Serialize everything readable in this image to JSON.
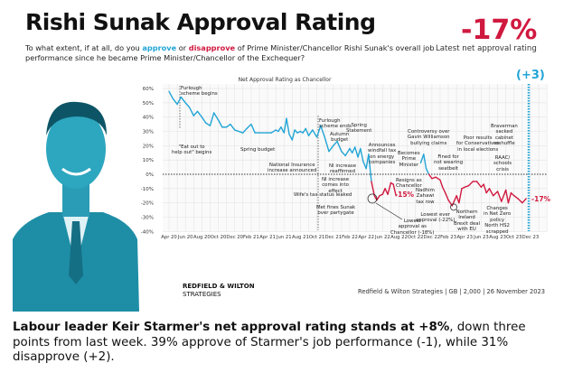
{
  "header": {
    "title": "Rishi Sunak Approval Rating",
    "question_pre": "To what extent, if at all, do you ",
    "approve": "approve",
    "or": " or ",
    "disapprove": "disapprove",
    "question_post": " of Prime Minister/Chancellor Rishi Sunak's overall job performance since he became Prime Minister/Chancellor of the Exchequer?",
    "latest_value": "-17%",
    "latest_label": "Latest net approval rating",
    "change": "(+3)"
  },
  "colors": {
    "positive": "#22a5d6",
    "negative": "#d0193f",
    "photo": "#1e8ea6"
  },
  "chart_data": {
    "type": "line",
    "title": "Net Approval Rating as Chancellor",
    "xlabel": "",
    "ylabel": "",
    "ylim": [
      -40,
      60
    ],
    "yticks": [
      "60%",
      "50%",
      "40%",
      "30%",
      "20%",
      "10%",
      "0%",
      "-10%",
      "-20%",
      "-30%",
      "-40%"
    ],
    "xticks": [
      "Apr 20",
      "Jun 20",
      "Aug 20",
      "Oct 20",
      "Dec 20",
      "Feb 21",
      "Apr 21",
      "Jun 21",
      "Aug 21",
      "Oct 21",
      "Dec 21",
      "Feb 22",
      "Apr 22",
      "Jun 22",
      "Aug 22",
      "Oct 22",
      "Dec 22",
      "Feb 23",
      "Apr 23",
      "Jun 23",
      "Aug 23",
      "Oct 23",
      "Dec 23"
    ],
    "grid": true,
    "series": [
      {
        "segment": "Chancellor",
        "points": [
          [
            "2020-04",
            58
          ],
          [
            "2020-04-15",
            53
          ],
          [
            "2020-05",
            49
          ],
          [
            "2020-05-15",
            54
          ],
          [
            "2020-06",
            50
          ],
          [
            "2020-06-15",
            47
          ],
          [
            "2020-07",
            41
          ],
          [
            "2020-07-15",
            44
          ],
          [
            "2020-08",
            40
          ],
          [
            "2020-08-15",
            36
          ],
          [
            "2020-09",
            34
          ],
          [
            "2020-09-15",
            43
          ],
          [
            "2020-10",
            38
          ],
          [
            "2020-10-15",
            33
          ],
          [
            "2020-11",
            33
          ],
          [
            "2020-11-15",
            35
          ],
          [
            "2020-12",
            31
          ],
          [
            "2021-01",
            29
          ],
          [
            "2021-01-15",
            32
          ],
          [
            "2021-02",
            35
          ],
          [
            "2021-02-15",
            29
          ],
          [
            "2021-03",
            29
          ],
          [
            "2021-04",
            29
          ],
          [
            "2021-04-15",
            29
          ],
          [
            "2021-05",
            31
          ],
          [
            "2021-05-10",
            30
          ],
          [
            "2021-05-20",
            33
          ],
          [
            "2021-06",
            29
          ],
          [
            "2021-06-10",
            39
          ],
          [
            "2021-06-20",
            28
          ],
          [
            "2021-07",
            24
          ],
          [
            "2021-07-10",
            31
          ],
          [
            "2021-07-20",
            29
          ],
          [
            "2021-08",
            30
          ],
          [
            "2021-08-10",
            29
          ],
          [
            "2021-08-20",
            32
          ],
          [
            "2021-09",
            27
          ],
          [
            "2021-09-15",
            31
          ],
          [
            "2021-10",
            26
          ],
          [
            "2021-10-15",
            34
          ],
          [
            "2021-11",
            25
          ],
          [
            "2021-11-15",
            16
          ],
          [
            "2021-12",
            20
          ],
          [
            "2021-12-15",
            23
          ],
          [
            "2022-01",
            16
          ],
          [
            "2022-01-15",
            13
          ],
          [
            "2022-02",
            18
          ],
          [
            "2022-02-10",
            15
          ],
          [
            "2022-02-20",
            19
          ],
          [
            "2022-03",
            12
          ],
          [
            "2022-03-10",
            18
          ],
          [
            "2022-03-20",
            9
          ],
          [
            "2022-04",
            4
          ],
          [
            "2022-04-10",
            14
          ],
          [
            "2022-04-20",
            -5
          ],
          [
            "2022-05",
            -15
          ],
          [
            "2022-05-10",
            -18
          ],
          [
            "2022-05-20",
            -15
          ],
          [
            "2022-06",
            -14
          ],
          [
            "2022-06-10",
            -10
          ],
          [
            "2022-06-20",
            -14
          ],
          [
            "2022-07",
            -6
          ],
          [
            "2022-07-10",
            -7
          ],
          [
            "2022-07-20",
            -15
          ]
        ]
      },
      {
        "segment": "Prime Minister",
        "points": [
          [
            "2022-10-20",
            8
          ],
          [
            "2022-11",
            14
          ],
          [
            "2022-11-10",
            4
          ],
          [
            "2022-11-20",
            0
          ],
          [
            "2022-12",
            -3
          ],
          [
            "2022-12-15",
            -2
          ],
          [
            "2023-01",
            -4
          ],
          [
            "2023-01-10",
            -9
          ],
          [
            "2023-01-20",
            -13
          ],
          [
            "2023-02",
            -18
          ],
          [
            "2023-02-15",
            -22
          ],
          [
            "2023-03",
            -15
          ],
          [
            "2023-03-10",
            -20
          ],
          [
            "2023-03-20",
            -10
          ],
          [
            "2023-04",
            -9
          ],
          [
            "2023-04-15",
            -8
          ],
          [
            "2023-05",
            -5
          ],
          [
            "2023-05-15",
            -5
          ],
          [
            "2023-06",
            -9
          ],
          [
            "2023-06-10",
            -7
          ],
          [
            "2023-06-20",
            -13
          ],
          [
            "2023-07",
            -10
          ],
          [
            "2023-07-15",
            -15
          ],
          [
            "2023-08",
            -12
          ],
          [
            "2023-08-15",
            -19
          ],
          [
            "2023-09",
            -11
          ],
          [
            "2023-09-10",
            -20
          ],
          [
            "2023-09-20",
            -13
          ],
          [
            "2023-10",
            -15
          ],
          [
            "2023-10-15",
            -17
          ],
          [
            "2023-11",
            -20
          ],
          [
            "2023-11-15",
            -17
          ]
        ]
      }
    ],
    "annotations": [
      "Furlough\nscheme begins",
      "\"Eat out to\nhelp out\" begins",
      "Spring budget",
      "Furlough\nscheme ends",
      "National Insurance\nincrease announced",
      "Autumn\nbudget",
      "NI increase\nreaffirmed",
      "Spring\nStatement",
      "NI increase\ncomes into\neffect",
      "Wife's tax status leaked",
      "Met fines Sunak\nover partygate",
      "Announces\nwindfall tax\non energy\ncompanies",
      "Lowest\napproval as\nChancellor (-18%)",
      "-15%",
      "Resigns as\nChancellor",
      "Becomes\nPrime\nMinister",
      "Controversy over\nGavin Williamson\nbullying claims",
      "Fined for\nnot wearing\nseatbelt",
      "Nadhim\nZahawi\ntax row",
      "Lowest ever\napproval (-22%)",
      "Northern\nIreland\nBrexit deal\nwith EU",
      "Poor results\nfor Conservatives\nin local elections",
      "Changes\nin Net Zero\npolicy\nNorth HS2\nscrapped",
      "RAAC/\nschools\ncrisis",
      "Braverman\nsacked\ncabinet\nreshuffle",
      "-17%"
    ]
  },
  "footer": {
    "logo_line1": "REDFIELD & WILTON",
    "logo_line2": "STRATEGIES",
    "source": "Redfield & Wilton Strategies | GB | 2,000 | 26 November 2023"
  },
  "caption": {
    "bold": "Labour leader Keir Starmer's net approval rating stands at +8%",
    "rest": ", down three points from last week. 39% approve of Starmer's job performance (-1), while 31% disapprove (+2)."
  }
}
